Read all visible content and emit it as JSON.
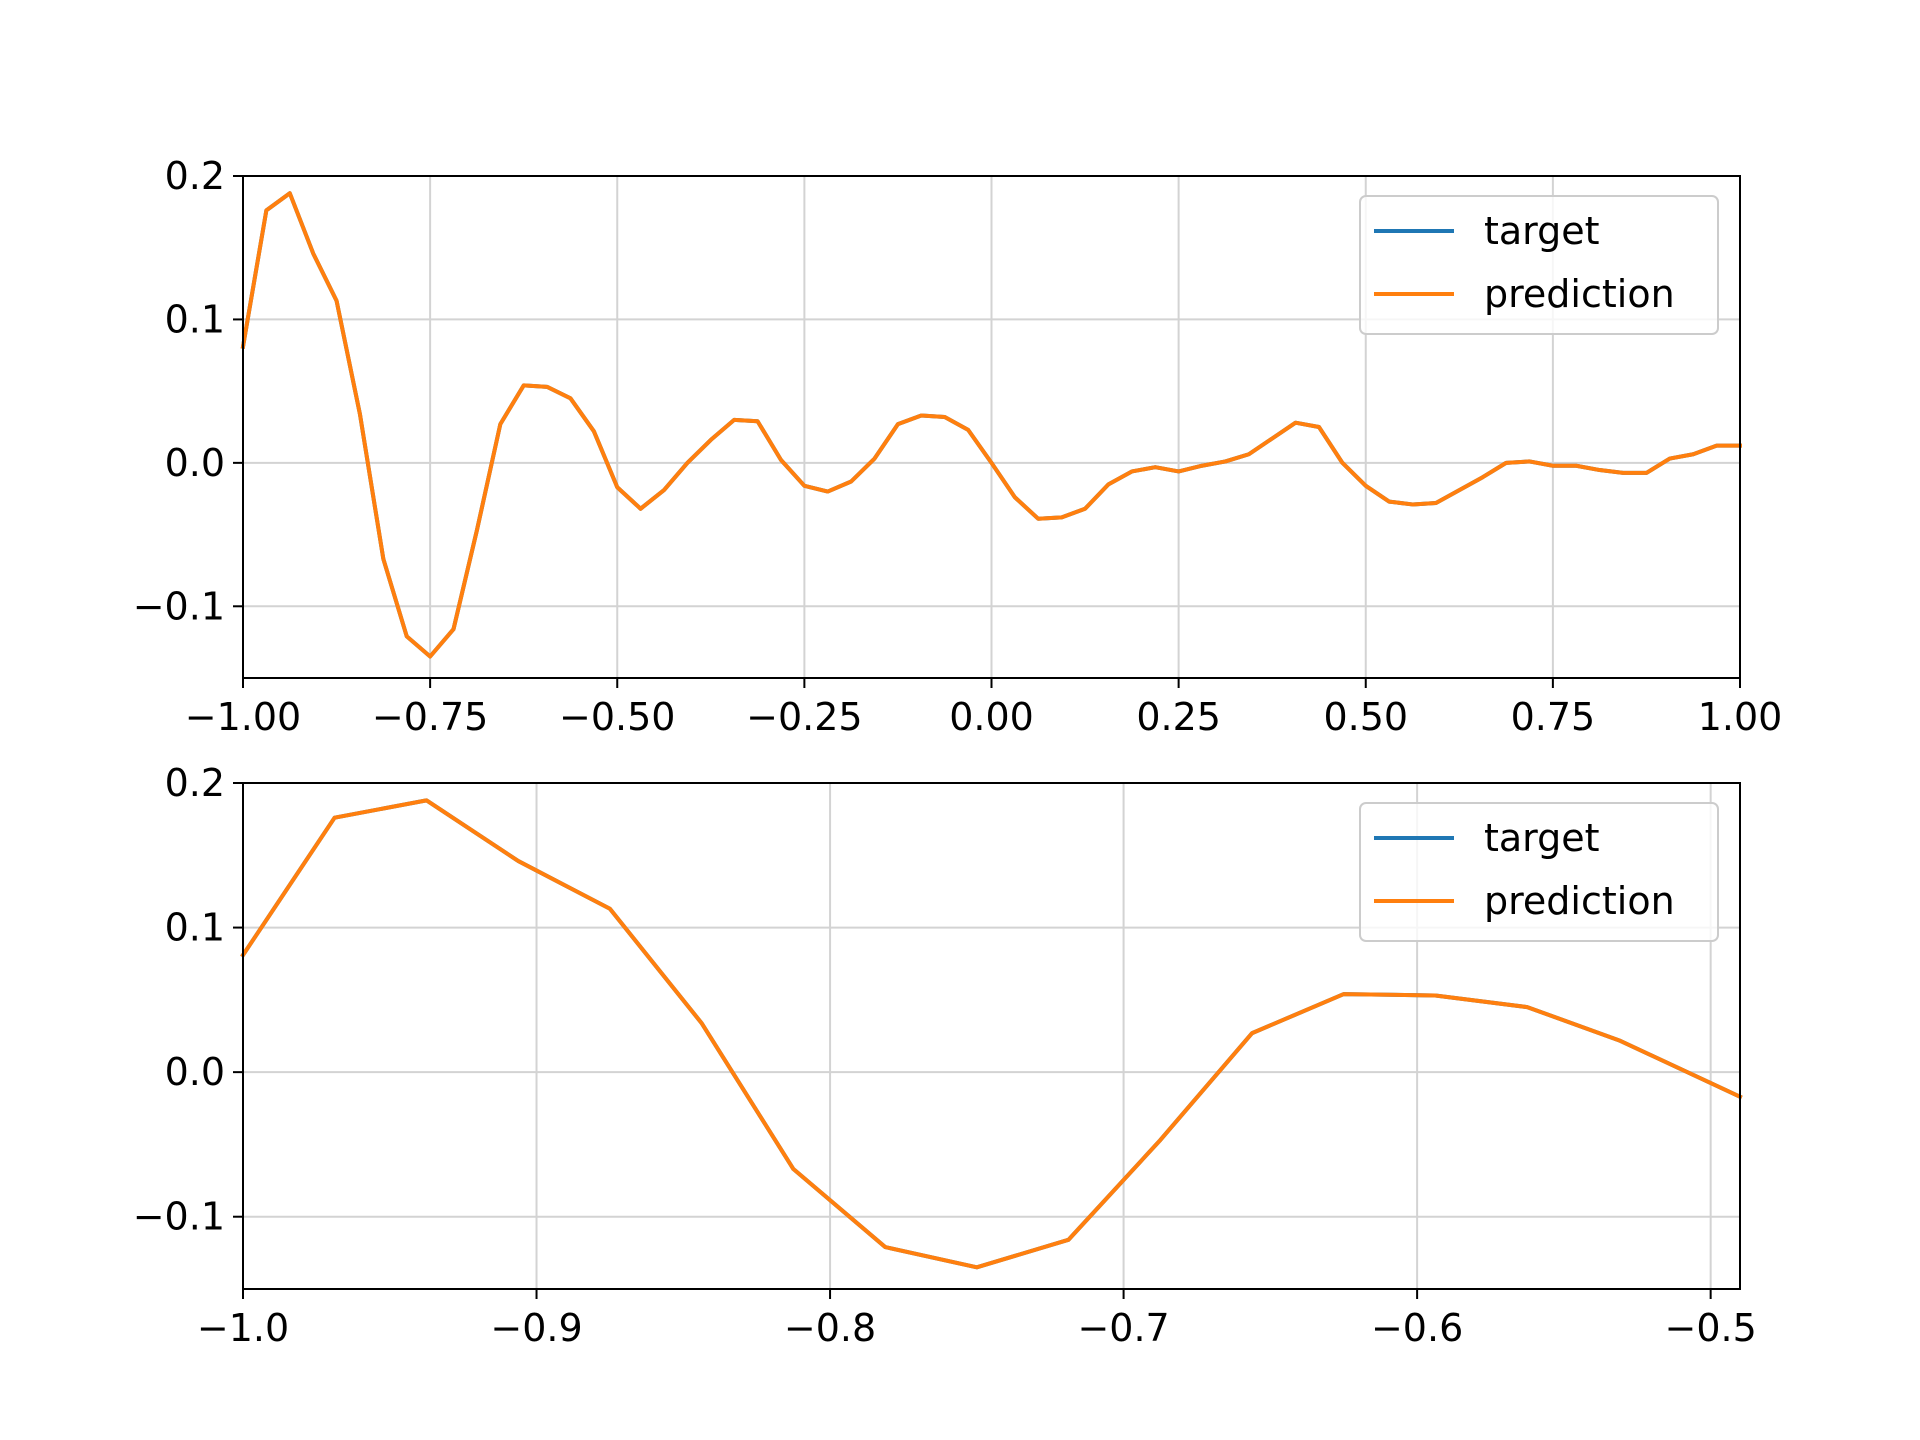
{
  "colors": {
    "target": "#1f77b4",
    "prediction": "#ff7f0e",
    "grid": "#d3d3d3",
    "axes": "#000000",
    "background": "#ffffff"
  },
  "chart_data": [
    {
      "type": "line",
      "title": "",
      "xlabel": "",
      "ylabel": "",
      "xlim": [
        -1.0,
        1.0
      ],
      "ylim": [
        -0.15,
        0.2
      ],
      "grid": true,
      "legend_position": "top-right",
      "x_ticks": [
        "−1.00",
        "−0.75",
        "−0.50",
        "−0.25",
        "0.00",
        "0.25",
        "0.50",
        "0.75",
        "1.00"
      ],
      "x_tick_values": [
        -1.0,
        -0.75,
        -0.5,
        -0.25,
        0.0,
        0.25,
        0.5,
        0.75,
        1.0
      ],
      "y_ticks": [
        "−0.1",
        "0.0",
        "0.1",
        "0.2"
      ],
      "y_tick_values": [
        -0.1,
        0.0,
        0.1,
        0.2
      ],
      "series": [
        {
          "name": "target",
          "x": [
            -1.0,
            -0.9688,
            -0.9375,
            -0.9062,
            -0.875,
            -0.8438,
            -0.8125,
            -0.7812,
            -0.75,
            -0.7188,
            -0.6875,
            -0.6562,
            -0.625,
            -0.5938,
            -0.5625,
            -0.5312,
            -0.5,
            -0.4688,
            -0.4375,
            -0.4062,
            -0.375,
            -0.3438,
            -0.3125,
            -0.2812,
            -0.25,
            -0.2188,
            -0.1875,
            -0.1562,
            -0.125,
            -0.0938,
            -0.0625,
            -0.0312,
            0.0,
            0.0312,
            0.0625,
            0.0938,
            0.125,
            0.1562,
            0.1875,
            0.2188,
            0.25,
            0.2812,
            0.3125,
            0.3438,
            0.375,
            0.4062,
            0.4375,
            0.4688,
            0.5,
            0.5312,
            0.5625,
            0.5938,
            0.625,
            0.6562,
            0.6875,
            0.7188,
            0.75,
            0.7812,
            0.8125,
            0.8438,
            0.875,
            0.9062,
            0.9375,
            0.9688,
            1.0
          ],
          "y": [
            0.081,
            0.176,
            0.188,
            0.146,
            0.113,
            0.034,
            -0.067,
            -0.121,
            -0.135,
            -0.116,
            -0.047,
            0.027,
            0.054,
            0.053,
            0.045,
            0.022,
            -0.017,
            -0.032,
            -0.019,
            0.0,
            0.016,
            0.03,
            0.029,
            0.002,
            -0.016,
            -0.02,
            -0.013,
            0.003,
            0.027,
            0.033,
            0.032,
            0.023,
            0.0,
            -0.024,
            -0.039,
            -0.038,
            -0.032,
            -0.015,
            -0.006,
            -0.003,
            -0.006,
            -0.002,
            0.001,
            0.006,
            0.017,
            0.028,
            0.025,
            0.0,
            -0.016,
            -0.027,
            -0.029,
            -0.028,
            -0.019,
            -0.01,
            0.0,
            0.001,
            -0.002,
            -0.002,
            -0.005,
            -0.007,
            -0.007,
            0.003,
            0.006,
            0.012,
            0.012
          ]
        },
        {
          "name": "prediction",
          "x": [
            -1.0,
            -0.9688,
            -0.9375,
            -0.9062,
            -0.875,
            -0.8438,
            -0.8125,
            -0.7812,
            -0.75,
            -0.7188,
            -0.6875,
            -0.6562,
            -0.625,
            -0.5938,
            -0.5625,
            -0.5312,
            -0.5,
            -0.4688,
            -0.4375,
            -0.4062,
            -0.375,
            -0.3438,
            -0.3125,
            -0.2812,
            -0.25,
            -0.2188,
            -0.1875,
            -0.1562,
            -0.125,
            -0.0938,
            -0.0625,
            -0.0312,
            0.0,
            0.0312,
            0.0625,
            0.0938,
            0.125,
            0.1562,
            0.1875,
            0.2188,
            0.25,
            0.2812,
            0.3125,
            0.3438,
            0.375,
            0.4062,
            0.4375,
            0.4688,
            0.5,
            0.5312,
            0.5625,
            0.5938,
            0.625,
            0.6562,
            0.6875,
            0.7188,
            0.75,
            0.7812,
            0.8125,
            0.8438,
            0.875,
            0.9062,
            0.9375,
            0.9688,
            1.0
          ],
          "y": [
            0.081,
            0.176,
            0.188,
            0.146,
            0.113,
            0.034,
            -0.067,
            -0.121,
            -0.135,
            -0.116,
            -0.047,
            0.027,
            0.054,
            0.053,
            0.045,
            0.022,
            -0.017,
            -0.032,
            -0.019,
            0.0,
            0.016,
            0.03,
            0.029,
            0.002,
            -0.016,
            -0.02,
            -0.013,
            0.003,
            0.027,
            0.033,
            0.032,
            0.023,
            0.0,
            -0.024,
            -0.039,
            -0.038,
            -0.032,
            -0.015,
            -0.006,
            -0.003,
            -0.006,
            -0.002,
            0.001,
            0.006,
            0.017,
            0.028,
            0.025,
            0.0,
            -0.016,
            -0.027,
            -0.029,
            -0.028,
            -0.019,
            -0.01,
            0.0,
            0.001,
            -0.002,
            -0.002,
            -0.005,
            -0.007,
            -0.007,
            0.003,
            0.006,
            0.012,
            0.012
          ]
        }
      ]
    },
    {
      "type": "line",
      "title": "",
      "xlabel": "",
      "ylabel": "",
      "xlim": [
        -1.0,
        -0.49
      ],
      "ylim": [
        -0.15,
        0.2
      ],
      "grid": true,
      "legend_position": "top-right",
      "x_ticks": [
        "−1.0",
        "−0.9",
        "−0.8",
        "−0.7",
        "−0.6",
        "−0.5"
      ],
      "x_tick_values": [
        -1.0,
        -0.9,
        -0.8,
        -0.7,
        -0.6,
        -0.5
      ],
      "y_ticks": [
        "−0.1",
        "0.0",
        "0.1",
        "0.2"
      ],
      "y_tick_values": [
        -0.1,
        0.0,
        0.1,
        0.2
      ],
      "series": [
        {
          "name": "target",
          "x": [
            -1.0,
            -0.9688,
            -0.9375,
            -0.9062,
            -0.875,
            -0.8438,
            -0.8125,
            -0.7812,
            -0.75,
            -0.7188,
            -0.6875,
            -0.6562,
            -0.625,
            -0.5938,
            -0.5625,
            -0.5312,
            -0.49
          ],
          "y": [
            0.081,
            0.176,
            0.188,
            0.146,
            0.113,
            0.034,
            -0.067,
            -0.121,
            -0.135,
            -0.116,
            -0.047,
            0.027,
            0.054,
            0.053,
            0.045,
            0.022,
            -0.017
          ]
        },
        {
          "name": "prediction",
          "x": [
            -1.0,
            -0.9688,
            -0.9375,
            -0.9062,
            -0.875,
            -0.8438,
            -0.8125,
            -0.7812,
            -0.75,
            -0.7188,
            -0.6875,
            -0.6562,
            -0.625,
            -0.5938,
            -0.5625,
            -0.5312,
            -0.49
          ],
          "y": [
            0.081,
            0.176,
            0.188,
            0.146,
            0.113,
            0.034,
            -0.067,
            -0.121,
            -0.135,
            -0.116,
            -0.047,
            0.027,
            0.054,
            0.053,
            0.045,
            0.022,
            -0.017
          ]
        }
      ]
    }
  ]
}
